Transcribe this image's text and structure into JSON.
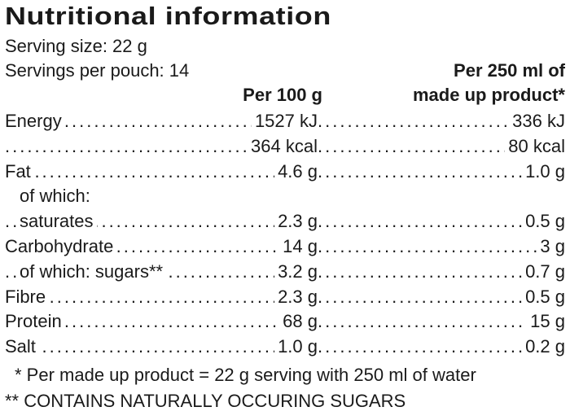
{
  "title": "Nutritional information",
  "serving_size": "Serving size: 22 g",
  "servings_per_pouch": "Servings per pouch: 14",
  "header": {
    "per_100g": "Per 100 g",
    "per_250ml_line1": "Per 250 ml of",
    "per_250ml_line2": "made up product*"
  },
  "rows": [
    {
      "label": "Energy",
      "per_100g": "1527 kJ",
      "per_250ml": "336 kJ",
      "indent": false
    },
    {
      "label": "",
      "per_100g": "364 kcal",
      "per_250ml": "80 kcal",
      "indent": false
    },
    {
      "label": "Fat",
      "per_100g": "4.6 g",
      "per_250ml": "1.0 g",
      "indent": false
    },
    {
      "label": "of which:",
      "per_100g": "",
      "per_250ml": "",
      "indent": true
    },
    {
      "label": "saturates",
      "per_100g": "2.3 g",
      "per_250ml": "0.5 g",
      "indent": true
    },
    {
      "label": "Carbohydrate",
      "per_100g": "14 g",
      "per_250ml": "3 g",
      "indent": false
    },
    {
      "label": "of which: sugars**",
      "per_100g": "3.2 g",
      "per_250ml": "0.7 g",
      "indent": true
    },
    {
      "label": "Fibre",
      "per_100g": "2.3 g",
      "per_250ml": "0.5 g",
      "indent": false
    },
    {
      "label": "Protein",
      "per_100g": "68 g",
      "per_250ml": "15 g",
      "indent": false
    },
    {
      "label": "Salt",
      "per_100g": "1.0 g",
      "per_250ml": "0.2 g",
      "indent": false
    }
  ],
  "footnotes": [
    "* Per made up product = 22 g serving with 250 ml of water",
    "** CONTAINS NATURALLY OCCURING SUGARS"
  ]
}
